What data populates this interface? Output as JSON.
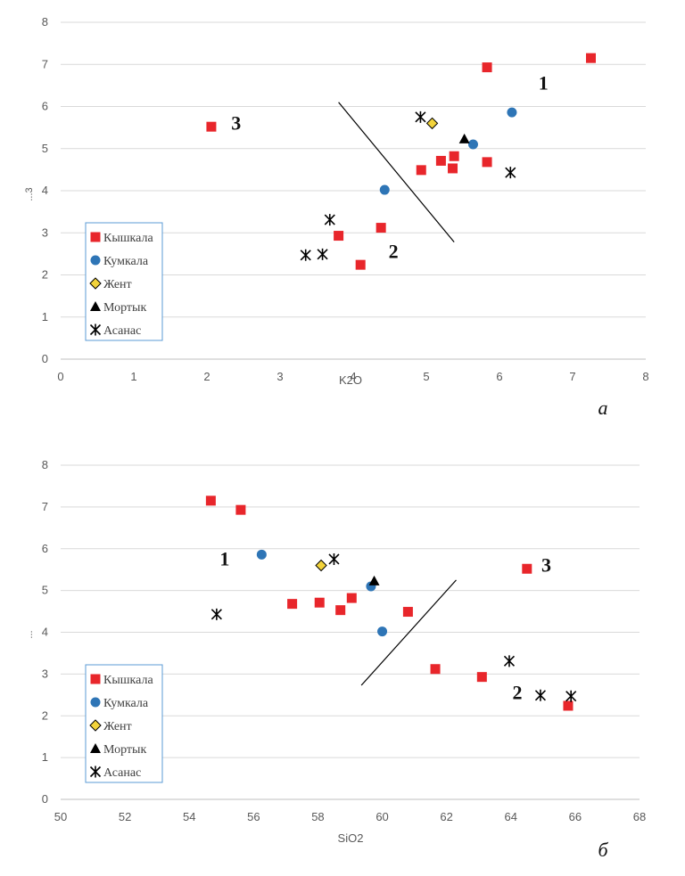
{
  "chart_data": [
    {
      "type": "scatter",
      "panel_letter": "а",
      "xlabel": "K2O",
      "ylabel": "...3",
      "xlim": [
        0,
        8
      ],
      "ylim": [
        0,
        8
      ],
      "xticks": [
        0,
        1,
        2,
        3,
        4,
        5,
        6,
        7,
        8
      ],
      "yticks": [
        0,
        1,
        2,
        3,
        4,
        5,
        6,
        7,
        8
      ],
      "grid": "horizontal",
      "series": [
        {
          "name": "Кышкала",
          "marker": "square",
          "color": "#e8262b",
          "points": [
            [
              7.25,
              7.15
            ],
            [
              5.83,
              6.93
            ],
            [
              2.06,
              5.52
            ],
            [
              5.38,
              4.82
            ],
            [
              5.2,
              4.71
            ],
            [
              5.83,
              4.68
            ],
            [
              5.36,
              4.53
            ],
            [
              4.93,
              4.49
            ],
            [
              4.38,
              3.12
            ],
            [
              3.8,
              2.93
            ],
            [
              4.1,
              2.24
            ]
          ]
        },
        {
          "name": "Кумкала",
          "marker": "circle",
          "color": "#2e75b6",
          "points": [
            [
              6.17,
              5.86
            ],
            [
              5.64,
              5.1
            ],
            [
              4.43,
              4.02
            ]
          ]
        },
        {
          "name": "Жент",
          "marker": "diamond",
          "color": "#f2d33b",
          "points": [
            [
              5.08,
              5.6
            ]
          ]
        },
        {
          "name": "Мортык",
          "marker": "triangle",
          "color": "#000000",
          "points": [
            [
              5.52,
              5.23
            ]
          ]
        },
        {
          "name": "Асанас",
          "marker": "asterisk",
          "color": "#000000",
          "points": [
            [
              4.92,
              5.75
            ],
            [
              6.15,
              4.43
            ],
            [
              3.68,
              3.31
            ],
            [
              3.35,
              2.47
            ],
            [
              3.58,
              2.49
            ]
          ]
        }
      ],
      "divider": [
        [
          3.8,
          6.1
        ],
        [
          5.38,
          2.78
        ]
      ],
      "regions": [
        {
          "label": "1",
          "x": 6.6,
          "y": 6.4
        },
        {
          "label": "2",
          "x": 4.55,
          "y": 2.4
        },
        {
          "label": "3",
          "x": 2.4,
          "y": 5.45
        }
      ]
    },
    {
      "type": "scatter",
      "panel_letter": "б",
      "xlabel": "SiO2",
      "ylabel": "...",
      "xlim": [
        50,
        68
      ],
      "ylim": [
        0,
        8
      ],
      "xticks": [
        50,
        52,
        54,
        56,
        58,
        60,
        62,
        64,
        66,
        68
      ],
      "yticks": [
        0,
        1,
        2,
        3,
        4,
        5,
        6,
        7,
        8
      ],
      "grid": "horizontal",
      "series": [
        {
          "name": "Кышкала",
          "marker": "square",
          "color": "#e8262b",
          "points": [
            [
              54.67,
              7.15
            ],
            [
              55.6,
              6.93
            ],
            [
              64.5,
              5.52
            ],
            [
              59.05,
              4.82
            ],
            [
              58.05,
              4.71
            ],
            [
              57.2,
              4.68
            ],
            [
              58.7,
              4.53
            ],
            [
              60.8,
              4.49
            ],
            [
              61.65,
              3.12
            ],
            [
              63.1,
              2.93
            ],
            [
              65.78,
              2.24
            ]
          ]
        },
        {
          "name": "Кумкала",
          "marker": "circle",
          "color": "#2e75b6",
          "points": [
            [
              56.25,
              5.86
            ],
            [
              59.65,
              5.1
            ],
            [
              60.0,
              4.02
            ]
          ]
        },
        {
          "name": "Жент",
          "marker": "diamond",
          "color": "#f2d33b",
          "points": [
            [
              58.1,
              5.6
            ]
          ]
        },
        {
          "name": "Мортык",
          "marker": "triangle",
          "color": "#000000",
          "points": [
            [
              59.75,
              5.23
            ]
          ]
        },
        {
          "name": "Асанас",
          "marker": "asterisk",
          "color": "#000000",
          "points": [
            [
              58.5,
              5.75
            ],
            [
              54.85,
              4.43
            ],
            [
              63.95,
              3.31
            ],
            [
              64.92,
              2.49
            ],
            [
              65.87,
              2.47
            ]
          ]
        }
      ],
      "divider": [
        [
          59.35,
          2.73
        ],
        [
          62.3,
          5.25
        ]
      ],
      "regions": [
        {
          "label": "1",
          "x": 55.1,
          "y": 5.6
        },
        {
          "label": "2",
          "x": 64.2,
          "y": 2.4
        },
        {
          "label": "3",
          "x": 65.1,
          "y": 5.45
        }
      ]
    }
  ]
}
